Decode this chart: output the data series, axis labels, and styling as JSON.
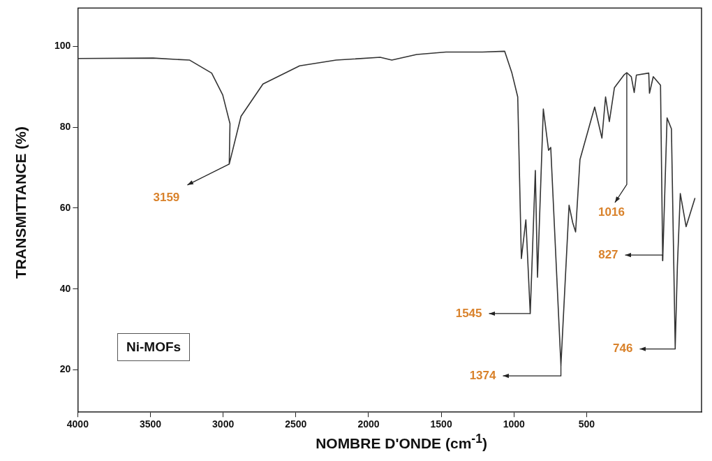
{
  "chart_data": {
    "type": "line",
    "xlabel": "NOMBRE D'ONDE (cm$^{-1}$)",
    "ylabel": "TRANSMITTANCE (%)",
    "xlim": [
      4000,
      -290
    ],
    "xticks": [
      4000,
      3500,
      3000,
      2500,
      2000,
      1500,
      1000,
      500
    ],
    "ylim": [
      9.5,
      109.5
    ],
    "yticks": [
      20,
      40,
      60,
      80,
      100
    ],
    "grid": false,
    "legend": false,
    "marker": "none",
    "line_style": "solid",
    "series": [
      {
        "color": "#333333",
        "x": [
          4000,
          3481,
          3230,
          3079,
          3003,
          2953,
          2958,
          2877,
          2726,
          2474,
          2223,
          1920,
          1840,
          1669,
          1467,
          1216,
          1064,
          1014,
          974,
          949,
          918,
          888,
          853,
          838,
          798,
          762,
          747,
          677,
          621,
          596,
          576,
          546,
          445,
          395,
          370,
          344,
          309,
          244,
          224,
          193,
          173,
          158,
          73,
          68,
          42,
          -8,
          -23,
          -53,
          -83,
          -109,
          -124,
          -144,
          -184,
          -245
        ],
        "values": [
          97,
          97.1,
          96.6,
          93.4,
          88,
          80.9,
          70.9,
          82.7,
          90.7,
          95.2,
          96.6,
          97.3,
          96.6,
          98,
          98.6,
          98.6,
          98.8,
          93.4,
          87.5,
          47.5,
          57.1,
          33.9,
          69.3,
          42.9,
          84.5,
          74.3,
          75,
          21.1,
          60.7,
          56.4,
          54.1,
          72,
          85,
          77.3,
          87.5,
          81.4,
          89.8,
          92.9,
          93.5,
          92.5,
          88.6,
          92.9,
          93.4,
          88.4,
          92.5,
          90.4,
          47,
          82.3,
          79.6,
          25.5,
          45.7,
          63.6,
          55.4,
          62.5
        ]
      }
    ],
    "annotations": [
      {
        "text": "3159",
        "x": 2958,
        "y": 70.9
      },
      {
        "text": "1545",
        "x": 888,
        "y": 33.9
      },
      {
        "text": "1374",
        "x": 677,
        "y": 21.1
      },
      {
        "text": "1016",
        "x": 224,
        "y": 93.5
      },
      {
        "text": "827",
        "x": -23,
        "y": 47
      },
      {
        "text": "746",
        "x": -109,
        "y": 25.5
      },
      "Ni-MOFs"
    ]
  }
}
